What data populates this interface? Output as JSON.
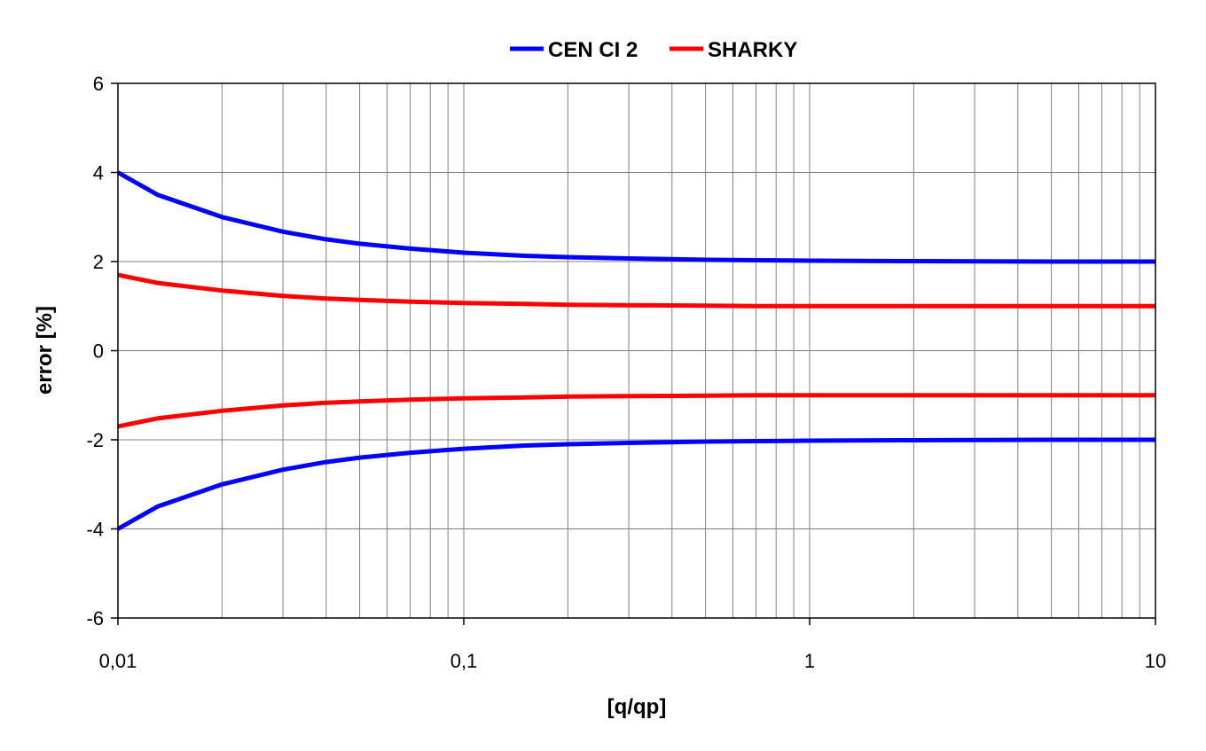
{
  "chart_data": {
    "type": "line",
    "xlabel": "[q/qp]",
    "ylabel": "error [%]",
    "xscale": "log",
    "xlim": [
      0.01,
      10
    ],
    "ylim": [
      -6,
      6
    ],
    "grid": true,
    "legend_position": "top-center",
    "x_tick_labels": [
      "0,01",
      "0,1",
      "1",
      "10"
    ],
    "y_tick_labels": [
      "6",
      "4",
      "2",
      "0",
      "-2",
      "-4",
      "-6"
    ],
    "y_ticks": [
      6,
      4,
      2,
      0,
      -2,
      -4,
      -6
    ],
    "legend": [
      {
        "name": "CEN CI 2",
        "color": "#0000ff"
      },
      {
        "name": "SHARKY",
        "color": "#ff0000"
      }
    ],
    "x": [
      0.01,
      0.013,
      0.02,
      0.03,
      0.04,
      0.05,
      0.07,
      0.1,
      0.15,
      0.2,
      0.3,
      0.5,
      0.7,
      1,
      2,
      5,
      10
    ],
    "series": [
      {
        "legend_index": 0,
        "color": "#0000ff",
        "values": [
          4.0,
          3.5,
          3.0,
          2.67,
          2.5,
          2.4,
          2.29,
          2.2,
          2.13,
          2.1,
          2.07,
          2.04,
          2.03,
          2.02,
          2.01,
          2.0,
          2.0
        ]
      },
      {
        "legend_index": 0,
        "color": "#0000ff",
        "values": [
          -4.0,
          -3.5,
          -3.0,
          -2.67,
          -2.5,
          -2.4,
          -2.29,
          -2.2,
          -2.13,
          -2.1,
          -2.07,
          -2.04,
          -2.03,
          -2.02,
          -2.01,
          -2.0,
          -2.0
        ]
      },
      {
        "legend_index": 1,
        "color": "#ff0000",
        "values": [
          1.7,
          1.52,
          1.35,
          1.23,
          1.17,
          1.14,
          1.1,
          1.07,
          1.05,
          1.03,
          1.02,
          1.01,
          1.0,
          1.0,
          1.0,
          1.0,
          1.0
        ]
      },
      {
        "legend_index": 1,
        "color": "#ff0000",
        "values": [
          -1.7,
          -1.52,
          -1.35,
          -1.23,
          -1.17,
          -1.14,
          -1.1,
          -1.07,
          -1.05,
          -1.03,
          -1.02,
          -1.01,
          -1.0,
          -1.0,
          -1.0,
          -1.0,
          -1.0
        ]
      }
    ]
  }
}
